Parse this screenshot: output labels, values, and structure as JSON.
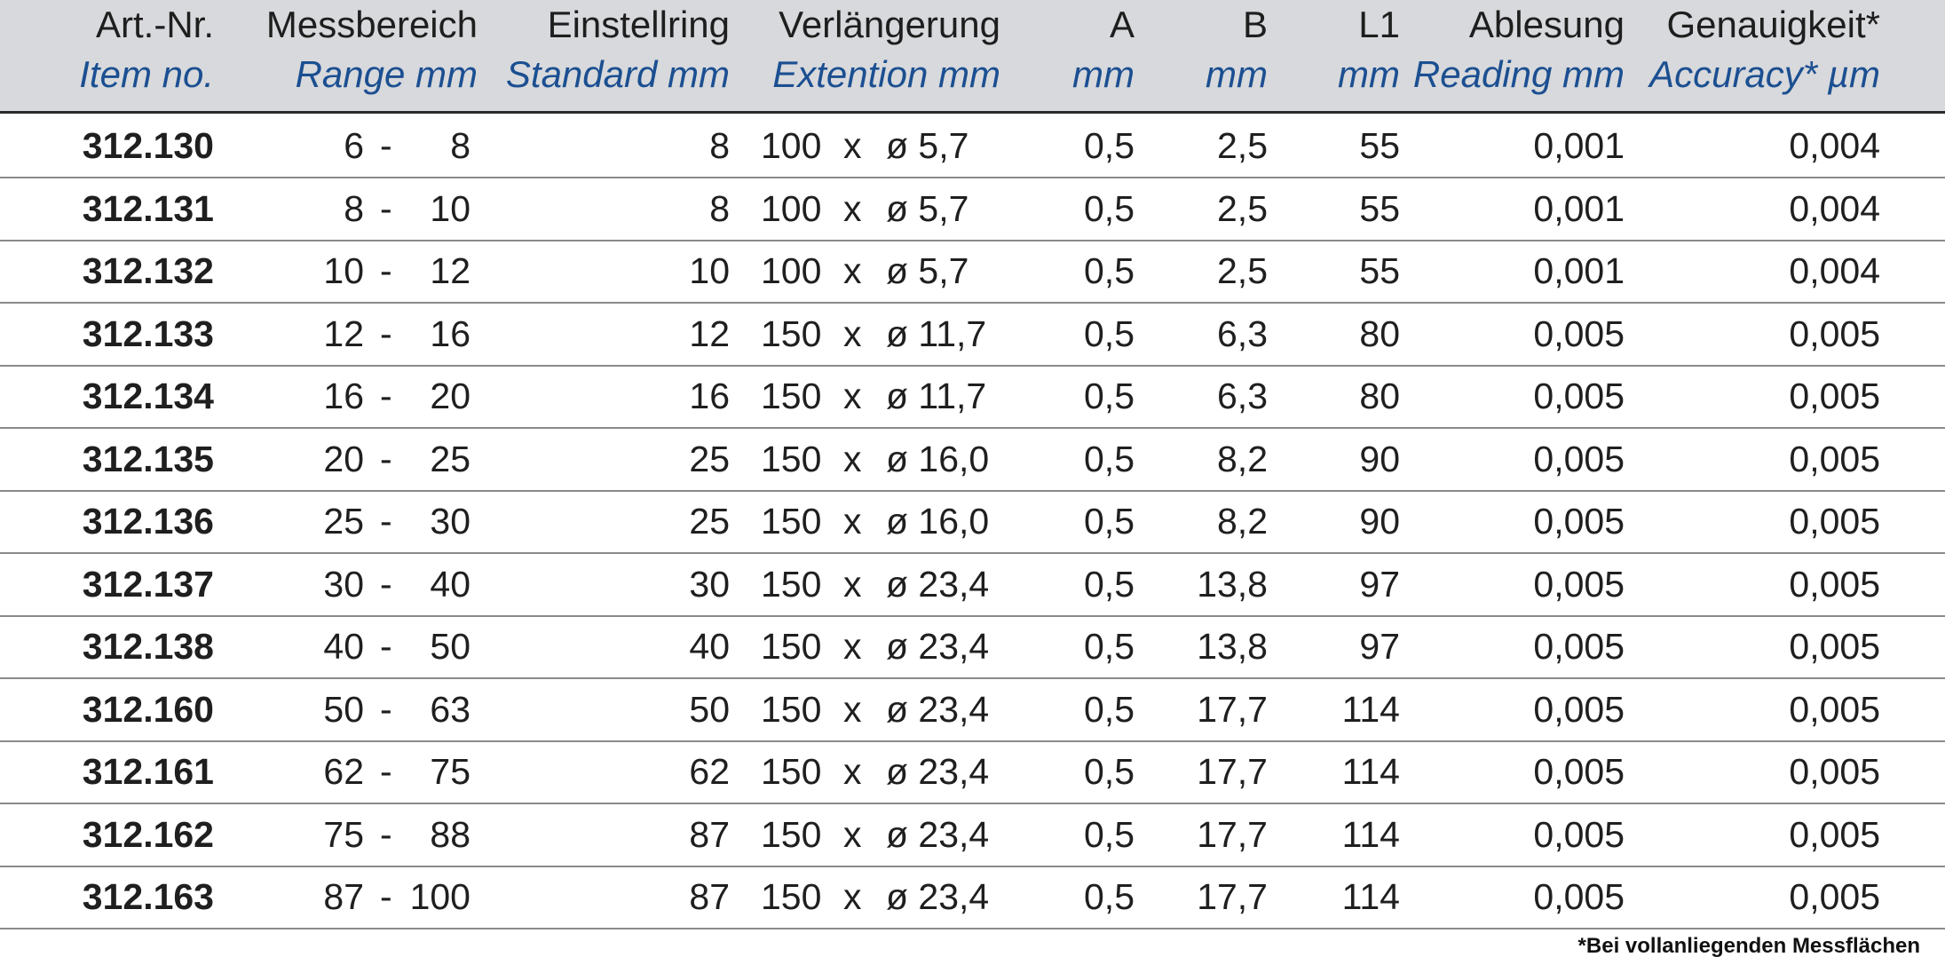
{
  "header": {
    "item": {
      "de": "Art.-Nr.",
      "en": "Item no."
    },
    "range": {
      "de": "Messbereich",
      "en": "Range mm"
    },
    "ring": {
      "de": "Einstellring",
      "en": "Standard mm"
    },
    "ext": {
      "de": "Verlängerung",
      "en": "Extention mm"
    },
    "a": {
      "de": "A",
      "en": "mm"
    },
    "b": {
      "de": "B",
      "en": "mm"
    },
    "l1": {
      "de": "L1",
      "en": "mm"
    },
    "reading": {
      "de": "Ablesung",
      "en": "Reading mm"
    },
    "accuracy": {
      "de": "Genauigkeit*",
      "en": "Accuracy* µm"
    }
  },
  "rows": [
    {
      "item": "312.130",
      "rfrom": "6",
      "rto": "8",
      "ring": "8",
      "ext_len": "100",
      "ext_x": "x",
      "ext_dia": "ø 5,7",
      "a": "0,5",
      "b": "2,5",
      "l1": "55",
      "reading": "0,001",
      "accuracy": "0,004"
    },
    {
      "item": "312.131",
      "rfrom": "8",
      "rto": "10",
      "ring": "8",
      "ext_len": "100",
      "ext_x": "x",
      "ext_dia": "ø 5,7",
      "a": "0,5",
      "b": "2,5",
      "l1": "55",
      "reading": "0,001",
      "accuracy": "0,004"
    },
    {
      "item": "312.132",
      "rfrom": "10",
      "rto": "12",
      "ring": "10",
      "ext_len": "100",
      "ext_x": "x",
      "ext_dia": "ø 5,7",
      "a": "0,5",
      "b": "2,5",
      "l1": "55",
      "reading": "0,001",
      "accuracy": "0,004"
    },
    {
      "item": "312.133",
      "rfrom": "12",
      "rto": "16",
      "ring": "12",
      "ext_len": "150",
      "ext_x": "x",
      "ext_dia": "ø 11,7",
      "a": "0,5",
      "b": "6,3",
      "l1": "80",
      "reading": "0,005",
      "accuracy": "0,005"
    },
    {
      "item": "312.134",
      "rfrom": "16",
      "rto": "20",
      "ring": "16",
      "ext_len": "150",
      "ext_x": "x",
      "ext_dia": "ø 11,7",
      "a": "0,5",
      "b": "6,3",
      "l1": "80",
      "reading": "0,005",
      "accuracy": "0,005"
    },
    {
      "item": "312.135",
      "rfrom": "20",
      "rto": "25",
      "ring": "25",
      "ext_len": "150",
      "ext_x": "x",
      "ext_dia": "ø 16,0",
      "a": "0,5",
      "b": "8,2",
      "l1": "90",
      "reading": "0,005",
      "accuracy": "0,005"
    },
    {
      "item": "312.136",
      "rfrom": "25",
      "rto": "30",
      "ring": "25",
      "ext_len": "150",
      "ext_x": "x",
      "ext_dia": "ø 16,0",
      "a": "0,5",
      "b": "8,2",
      "l1": "90",
      "reading": "0,005",
      "accuracy": "0,005"
    },
    {
      "item": "312.137",
      "rfrom": "30",
      "rto": "40",
      "ring": "30",
      "ext_len": "150",
      "ext_x": "x",
      "ext_dia": "ø 23,4",
      "a": "0,5",
      "b": "13,8",
      "l1": "97",
      "reading": "0,005",
      "accuracy": "0,005"
    },
    {
      "item": "312.138",
      "rfrom": "40",
      "rto": "50",
      "ring": "40",
      "ext_len": "150",
      "ext_x": "x",
      "ext_dia": "ø 23,4",
      "a": "0,5",
      "b": "13,8",
      "l1": "97",
      "reading": "0,005",
      "accuracy": "0,005"
    },
    {
      "item": "312.160",
      "rfrom": "50",
      "rto": "63",
      "ring": "50",
      "ext_len": "150",
      "ext_x": "x",
      "ext_dia": "ø 23,4",
      "a": "0,5",
      "b": "17,7",
      "l1": "114",
      "reading": "0,005",
      "accuracy": "0,005"
    },
    {
      "item": "312.161",
      "rfrom": "62",
      "rto": "75",
      "ring": "62",
      "ext_len": "150",
      "ext_x": "x",
      "ext_dia": "ø 23,4",
      "a": "0,5",
      "b": "17,7",
      "l1": "114",
      "reading": "0,005",
      "accuracy": "0,005"
    },
    {
      "item": "312.162",
      "rfrom": "75",
      "rto": "88",
      "ring": "87",
      "ext_len": "150",
      "ext_x": "x",
      "ext_dia": "ø 23,4",
      "a": "0,5",
      "b": "17,7",
      "l1": "114",
      "reading": "0,005",
      "accuracy": "0,005"
    },
    {
      "item": "312.163",
      "rfrom": "87",
      "rto": "100",
      "ring": "87",
      "ext_len": "150",
      "ext_x": "x",
      "ext_dia": "ø 23,4",
      "a": "0,5",
      "b": "17,7",
      "l1": "114",
      "reading": "0,005",
      "accuracy": "0,005"
    }
  ],
  "footnote": "*Bei vollanliegenden Messflächen"
}
